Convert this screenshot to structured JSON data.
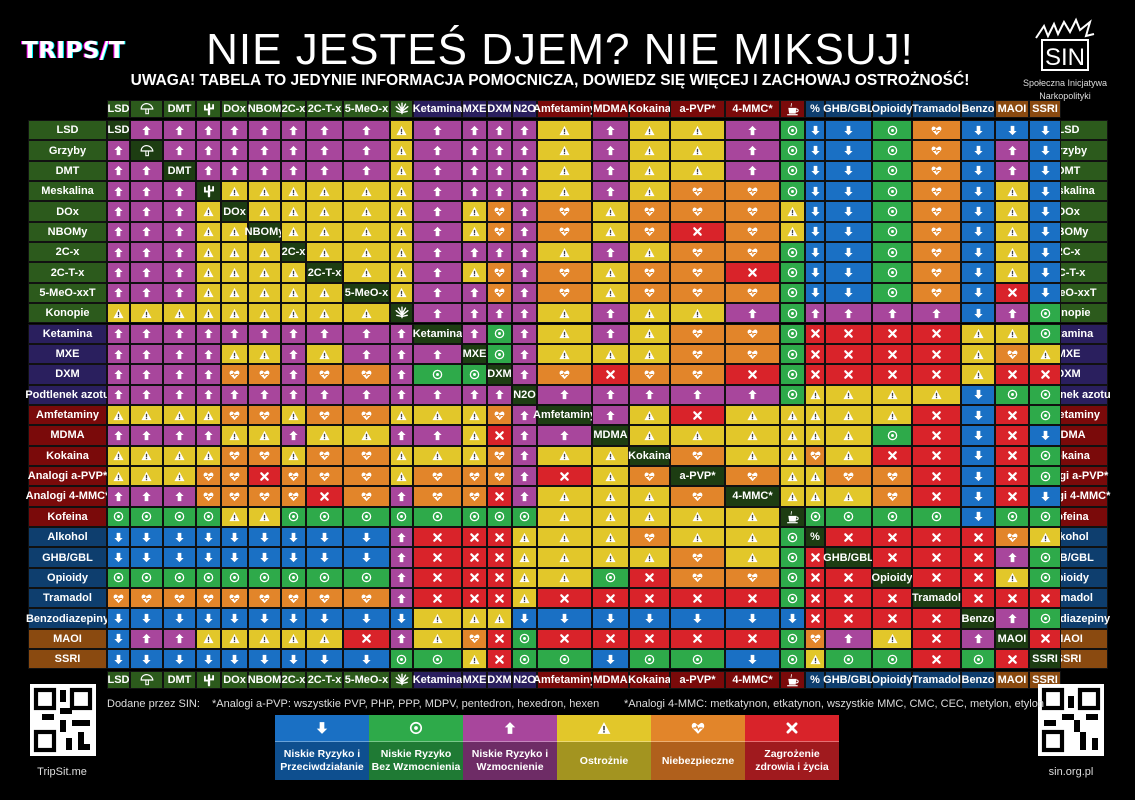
{
  "header": {
    "logo_left": "TRIPS/T",
    "title": "NIE JESTEŚ DJEM? NIE MIKSUJ!",
    "subtitle": "UWAGA! TABELA TO JEDYNIE INFORMACJA POMOCNICZA, DOWIEDZ SIĘ WIĘCEJ I ZACHOWAJ OSTROŻNOŚĆ!",
    "logo_right": "SIN",
    "logo_right_caption_1": "Społeczna Inicjatywa",
    "logo_right_caption_2": "Narkopolityki"
  },
  "colors": {
    "D": "#1a70c4",
    "N": "#2eaa4a",
    "U": "#a8469c",
    "C": "#e2c72a",
    "H": "#e2852a",
    "X": "#d9232a",
    "group_psychedelic": "#2c5a1c",
    "group_dissociative": "#2a1f5e",
    "group_stimulant": "#7a0a0a",
    "group_depressant": "#0e3e6e",
    "group_antidepressant": "#8a4a10"
  },
  "icons": {
    "D": "arrow-down-icon",
    "N": "circle-dot-icon",
    "U": "arrow-up-icon",
    "C": "warning-triangle-icon",
    "H": "heart-pulse-icon",
    "X": "cross-icon"
  },
  "chart_data": {
    "type": "table",
    "title": "NIE JESTEŚ DJEM? NIE MIKSUJ!",
    "row_labels": [
      "LSD",
      "Grzyby",
      "DMT",
      "Meskalina",
      "DOx",
      "NBOMy",
      "2C-x",
      "2C-T-x",
      "5-MeO-xxT",
      "Konopie",
      "Ketamina",
      "MXE",
      "DXM",
      "Podtlenek azotu",
      "Amfetaminy",
      "MDMA",
      "Kokaina",
      "Analogi a-PVP*",
      "Analogi 4-MMC*",
      "Kofeina",
      "Alkohol",
      "GHB/GBL",
      "Opioidy",
      "Tramadol",
      "Benzodiazepiny",
      "MAOI",
      "SSRI"
    ],
    "row_groups": [
      "psychedelic",
      "psychedelic",
      "psychedelic",
      "psychedelic",
      "psychedelic",
      "psychedelic",
      "psychedelic",
      "psychedelic",
      "psychedelic",
      "psychedelic",
      "dissociative",
      "dissociative",
      "dissociative",
      "dissociative",
      "stimulant",
      "stimulant",
      "stimulant",
      "stimulant",
      "stimulant",
      "stimulant",
      "depressant",
      "depressant",
      "depressant",
      "depressant",
      "depressant",
      "antidepressant",
      "antidepressant"
    ],
    "column_labels": [
      "LSD",
      "mushroom-icon",
      "DMT",
      "cactus-icon",
      "DOx",
      "NBOM",
      "2C-x",
      "2C-T-x",
      "5-MeO-x",
      "cannabis-leaf-icon",
      "Ketamina",
      "MXE",
      "DXM",
      "N2O",
      "Amfetaminy",
      "MDMA",
      "Kokaina",
      "a-PVP*",
      "4-MMC*",
      "coffee-cup-icon",
      "%",
      "GHB/GBL",
      "Opioidy",
      "Tramadol",
      "Benzo",
      "MAOI",
      "SSRI"
    ],
    "diagonal_labels": [
      "LSD",
      "mushroom-icon",
      "DMT",
      "cactus-icon",
      "DOx",
      "NBOMy",
      "2C-x",
      "2C-T-x",
      "5-MeO-x",
      "cannabis-leaf-icon",
      "Ketamina",
      "MXE",
      "DXM",
      "N2O",
      "Amfetaminy",
      "MDMA",
      "Kokaina",
      "a-PVP*",
      "4-MMC*",
      "coffee-cup-icon",
      "%",
      "GHB/GBL",
      "Opioidy",
      "Tramadol",
      "Benzo",
      "MAOI",
      "SSRI"
    ],
    "rows": [
      "-UUUUUUUUCUUUUCUCCUNDDNHDDD",
      "U-UUUUUUUCUUUUCUCCUNDDNHDUD",
      "UU-UUUUUUCUUUUCUCCUNDDNHDUD",
      "UUU-CCCCCCUUUUCUCHHNDDNHDCD",
      "UUUC-CCCCCUCHUHCHHHCDDNHDCD",
      "UUUCC-CCCCUCHUHCHXHCDDNHDCD",
      "UUUCCC-CCCUUUUCUCHHNDDNHDCD",
      "UUUCCCC-CCUCHUHCHHXNDDNHDCD",
      "UUUCCCCC-CUUHUHCHHHNDDNHDXD",
      "CCCCCCCCC-UUUUCUCCUNUUUUDUN",
      "UUUUUUUUUU-UNUCUCHHNXXXXCCN",
      "UUUUCCUCUUU-NUCCCHHNXXXXCHC",
      "UUUUHHUHHUNN-UHXHHXNXXXXCXX",
      "UUUUUUUUUUUUU-UUUUUNCCCCDNN",
      "CCCCHHCHHCCCHU-UCXCCCCCXDXN",
      "UUUUCCUCCUUCXUU-CCCCCCNXDXD",
      "CCCCHHCHHCCCHUCC-HCCHCXXDXN",
      "CCCHHXHHHCHHHUXCH-HCCHHXDXN",
      "UUUHHHHXHUHHXUCCCH-CCCHXDXD",
      "NNNNCCNNNNNNNNCCCCC-NNNNDNN",
      "DDDDDDDDDUXXXCCCHCCN-XXXXHC",
      "DDDDDDDDDUXXXCCCCHCNX-XXXUN",
      "NNNNNNNNNUXXXCCNXHHNXX-XXCN",
      "HHHHHHHHHUXXXCXXXXXNXXX-XXX",
      "DDDDDDDDDDCCCDDDDDDDXXXX-UN",
      "DUUCCCCCXUCHXNXXXXXNHUCXU-X",
      "DDDDDDDDDNNCXNNDNNDNCNNXNX-"
    ],
    "legend": [
      {
        "code": "D",
        "label_1": "Niskie Ryzyko i",
        "label_2": "Przeciwdziałanie"
      },
      {
        "code": "N",
        "label_1": "Niskie Ryzyko",
        "label_2": "Bez Wzmocnienia"
      },
      {
        "code": "U",
        "label_1": "Niskie Ryzyko i",
        "label_2": "Wzmocnienie"
      },
      {
        "code": "C",
        "label_1": "Ostrożnie",
        "label_2": ""
      },
      {
        "code": "H",
        "label_1": "Niebezpieczne",
        "label_2": ""
      },
      {
        "code": "X",
        "label_1": "Zagrożenie",
        "label_2": "zdrowia i życia"
      }
    ]
  },
  "footer": {
    "added_by": "Dodane przez SIN:",
    "note_apvp": "*Analogi a-PVP: wszystkie PVP, PHP, PPP, MDPV, pentedron, hexedron, hexen",
    "note_4mmc": "*Analogi 4-MMC: metkatynon, etkatynon, wszystkie MMC, CMC, CEC, metylon, etylon",
    "qr_left_caption": "TripSit.me",
    "qr_right_caption": "sin.org.pl"
  }
}
